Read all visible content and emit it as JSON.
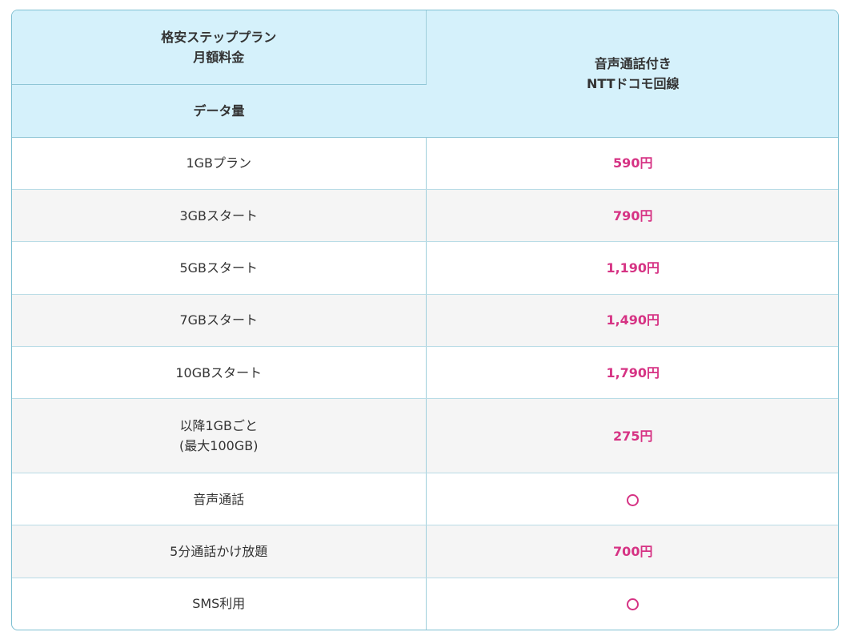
{
  "header": {
    "col1_top_line1": "格安ステッププラン",
    "col1_top_line2": "月額料金",
    "col1_bottom": "データ量",
    "col2_line1": "音声通話付き",
    "col2_line2": "NTTドコモ回線"
  },
  "rows": [
    {
      "label": "1GBプラン",
      "value": "590円"
    },
    {
      "label": "3GBスタート",
      "value": "790円"
    },
    {
      "label": "5GBスタート",
      "value": "1,190円"
    },
    {
      "label": "7GBスタート",
      "value": "1,490円"
    },
    {
      "label": "10GBスタート",
      "value": "1,790円"
    },
    {
      "label_line1": "以降1GBごと",
      "label_line2": "(最大100GB)",
      "value": "275円"
    },
    {
      "label": "音声通話",
      "value_icon": "circle-mark-icon"
    },
    {
      "label": "5分通話かけ放題",
      "value": "700円"
    },
    {
      "label": "SMS利用",
      "value_icon": "circle-mark-icon"
    }
  ],
  "colors": {
    "header_bg": "#d5f1fb",
    "border": "#7dbfd1",
    "price": "#d63384",
    "alt_row_bg": "#f5f5f5"
  }
}
